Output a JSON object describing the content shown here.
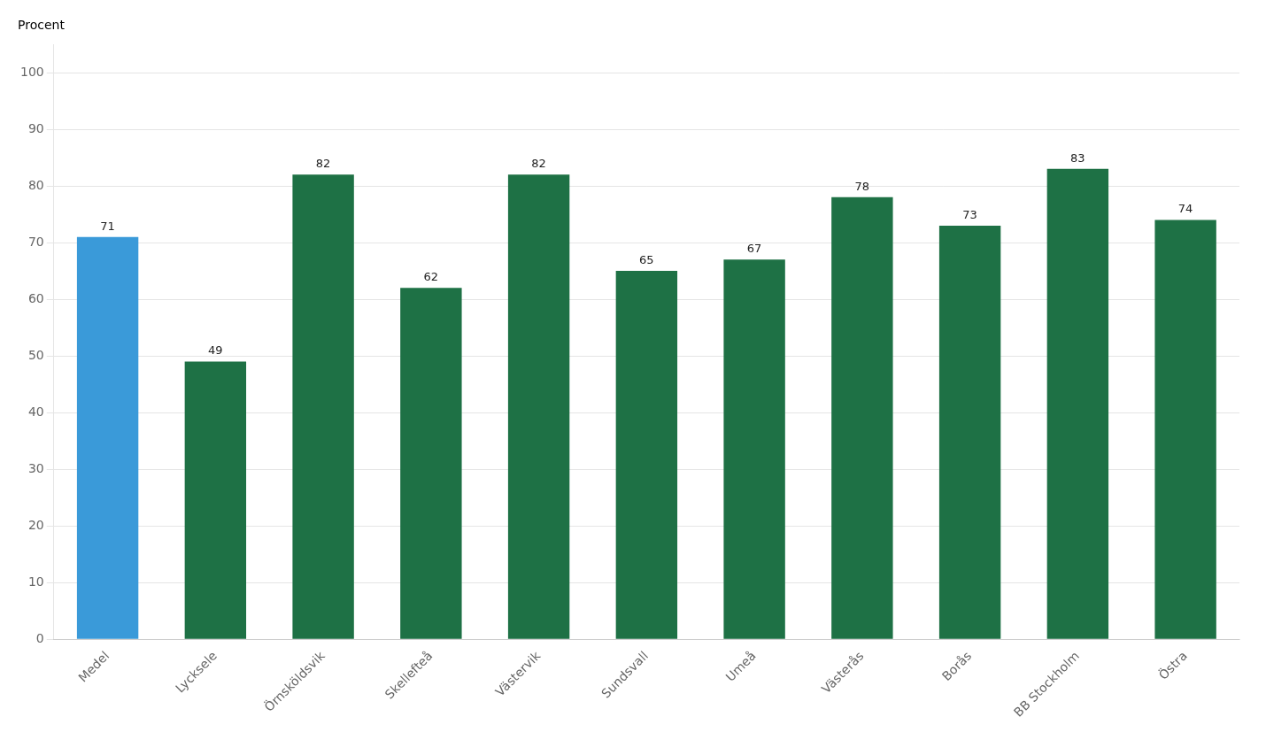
{
  "chart_data": {
    "type": "bar",
    "ylabel": "Procent",
    "categories": [
      "Medel",
      "Lycksele",
      "Örnsköldsvik",
      "Skellefteå",
      "Västervik",
      "Sundsvall",
      "Umeå",
      "Västerås",
      "Borås",
      "BB Stockholm",
      "Östra"
    ],
    "values": [
      71,
      49,
      82,
      62,
      82,
      65,
      67,
      78,
      73,
      83,
      74
    ],
    "colors": [
      "#3a9ad9",
      "#1e7145",
      "#1e7145",
      "#1e7145",
      "#1e7145",
      "#1e7145",
      "#1e7145",
      "#1e7145",
      "#1e7145",
      "#1e7145",
      "#1e7145"
    ],
    "ylim": [
      0,
      105
    ],
    "yticks": [
      0,
      10,
      20,
      30,
      40,
      50,
      60,
      70,
      80,
      90,
      100
    ],
    "grid": true,
    "data_labels": true
  }
}
